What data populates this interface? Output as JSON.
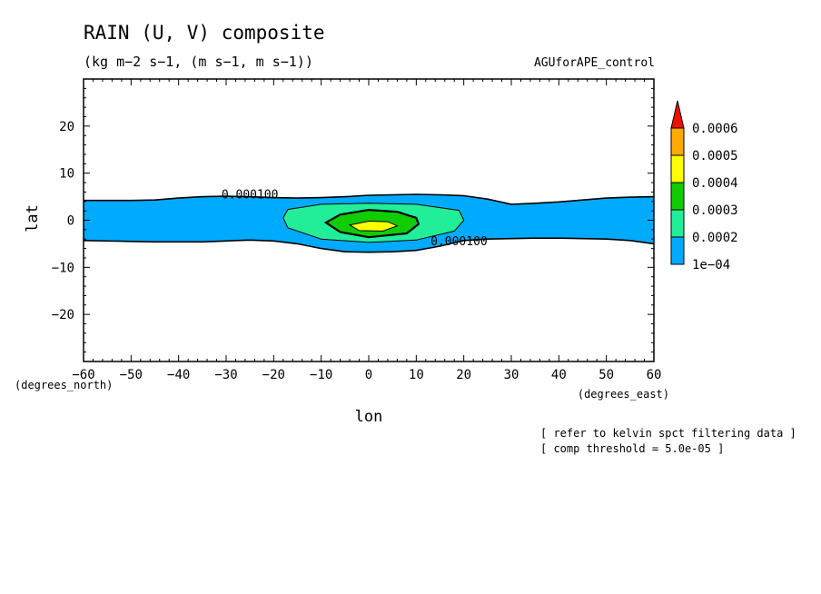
{
  "header": {
    "title": "RAIN (U, V) composite",
    "units": "(kg m−2 s−1, (m s−1, m s−1))",
    "dataset": "AGUforAPE_control"
  },
  "notes": {
    "line1": "[ refer to kelvin spct filtering data ]",
    "line2": "[ comp threshold = 5.0e-05 ]"
  },
  "colors": {
    "level_1e4": "#00aaff",
    "level_2e4": "#22ee99",
    "level_3e4": "#11cc00",
    "level_4e4": "#ffff00",
    "level_5e4": "#ffaa00",
    "level_6e4": "#ee1100"
  },
  "chart_data": {
    "type": "contour",
    "xlabel": "lon",
    "ylabel": "lat",
    "x_unit": "(degrees_east)",
    "y_unit": "(degrees_north)",
    "xlim": [
      -60,
      60
    ],
    "ylim": [
      -30,
      30
    ],
    "xticks": [
      -60,
      -50,
      -40,
      -30,
      -20,
      -10,
      0,
      10,
      20,
      30,
      40,
      50,
      60
    ],
    "xtick_labels": [
      "−60",
      "−50",
      "−40",
      "−30",
      "−20",
      "−10",
      "0",
      "10",
      "20",
      "30",
      "40",
      "50",
      "60"
    ],
    "yticks": [
      20,
      10,
      0,
      -10,
      -20
    ],
    "ytick_labels": [
      "20",
      "10",
      "0",
      "−10",
      "−20"
    ],
    "colorbar": {
      "levels": [
        0.0001,
        0.0002,
        0.0003,
        0.0004,
        0.0005,
        0.0006
      ],
      "labels": [
        "1e−04",
        "0.0002",
        "0.0003",
        "0.0004",
        "0.0005",
        "0.0006"
      ],
      "colors": [
        "#00aaff",
        "#22ee99",
        "#11cc00",
        "#ffff00",
        "#ffaa00",
        "#ee1100"
      ],
      "extend": "max"
    },
    "contour_labels": [
      "0.000100",
      "0.000100"
    ],
    "regions": [
      {
        "level": 0.0001,
        "upper_edge": [
          [
            -60,
            4.2
          ],
          [
            -50,
            4.2
          ],
          [
            -45,
            4.3
          ],
          [
            -40,
            4.7
          ],
          [
            -35,
            5.0
          ],
          [
            -30,
            5.1
          ],
          [
            -25,
            5.0
          ],
          [
            -20,
            4.8
          ],
          [
            -15,
            4.7
          ],
          [
            -10,
            4.8
          ],
          [
            -5,
            5.0
          ],
          [
            0,
            5.3
          ],
          [
            5,
            5.4
          ],
          [
            10,
            5.5
          ],
          [
            15,
            5.4
          ],
          [
            20,
            5.2
          ],
          [
            25,
            4.5
          ],
          [
            30,
            3.4
          ],
          [
            35,
            3.6
          ],
          [
            40,
            3.9
          ],
          [
            45,
            4.3
          ],
          [
            50,
            4.7
          ],
          [
            55,
            4.9
          ],
          [
            60,
            5.0
          ]
        ],
        "lower_edge": [
          [
            -60,
            -4.3
          ],
          [
            -50,
            -4.5
          ],
          [
            -45,
            -4.6
          ],
          [
            -40,
            -4.6
          ],
          [
            -35,
            -4.6
          ],
          [
            -30,
            -4.4
          ],
          [
            -25,
            -4.2
          ],
          [
            -20,
            -4.4
          ],
          [
            -15,
            -5.0
          ],
          [
            -10,
            -6.0
          ],
          [
            -5,
            -6.7
          ],
          [
            0,
            -6.8
          ],
          [
            5,
            -6.7
          ],
          [
            10,
            -6.4
          ],
          [
            15,
            -5.5
          ],
          [
            20,
            -4.3
          ],
          [
            25,
            -4.0
          ],
          [
            30,
            -3.9
          ],
          [
            35,
            -3.8
          ],
          [
            40,
            -3.8
          ],
          [
            45,
            -3.9
          ],
          [
            50,
            -4.0
          ],
          [
            55,
            -4.3
          ],
          [
            60,
            -5.0
          ]
        ]
      },
      {
        "level": 0.0002,
        "outline": [
          [
            -18,
            0.5
          ],
          [
            -17,
            2.3
          ],
          [
            -10,
            3.4
          ],
          [
            0,
            3.6
          ],
          [
            10,
            3.4
          ],
          [
            19,
            2.1
          ],
          [
            20,
            0.0
          ],
          [
            18,
            -2.3
          ],
          [
            10,
            -4.2
          ],
          [
            0,
            -4.7
          ],
          [
            -10,
            -4.0
          ],
          [
            -17,
            -1.6
          ]
        ]
      },
      {
        "level": 0.0003,
        "outline": [
          [
            -9,
            -0.5
          ],
          [
            -6,
            1.2
          ],
          [
            0,
            2.2
          ],
          [
            6,
            1.8
          ],
          [
            10,
            0.5
          ],
          [
            10.5,
            -0.8
          ],
          [
            8,
            -2.8
          ],
          [
            0,
            -3.6
          ],
          [
            -6,
            -2.5
          ]
        ]
      },
      {
        "level": 0.0004,
        "outline": [
          [
            -4,
            -1.0
          ],
          [
            0,
            -0.2
          ],
          [
            4,
            -0.3
          ],
          [
            6,
            -1.2
          ],
          [
            3,
            -2.3
          ],
          [
            -2,
            -2.2
          ]
        ]
      }
    ]
  }
}
